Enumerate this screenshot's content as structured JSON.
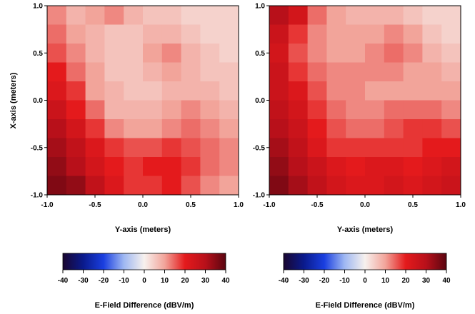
{
  "colorbar": {
    "stops": [
      {
        "value": -40,
        "color": "#1a0630"
      },
      {
        "value": -30,
        "color": "#0a1a8c"
      },
      {
        "value": -20,
        "color": "#1a3fe0"
      },
      {
        "value": -10,
        "color": "#9fb8f2"
      },
      {
        "value": 0,
        "color": "#f7f1ee"
      },
      {
        "value": 10,
        "color": "#f2a49a"
      },
      {
        "value": 20,
        "color": "#e41a1c"
      },
      {
        "value": 30,
        "color": "#b8101a"
      },
      {
        "value": 40,
        "color": "#5a0510"
      }
    ]
  },
  "chart_data": [
    {
      "type": "heatmap",
      "title": "",
      "xlabel": "Y-axis (meters)",
      "ylabel": "X-axis (meters)",
      "xlim": [
        -1.0,
        1.0
      ],
      "ylim": [
        -1.0,
        1.0
      ],
      "xticks": [
        "-1.0",
        "-0.5",
        "0.0",
        "0.5",
        "1.0"
      ],
      "yticks": [
        "1.0",
        "0.5",
        "0.0",
        "-0.5",
        "-1.0"
      ],
      "grid_cols": 10,
      "grid_rows": 10,
      "z_values_dBV_per_m": [
        [
          12,
          8,
          10,
          12,
          8,
          6,
          6,
          4,
          4,
          4
        ],
        [
          14,
          10,
          8,
          6,
          6,
          8,
          8,
          6,
          4,
          4
        ],
        [
          16,
          12,
          8,
          6,
          6,
          10,
          12,
          8,
          6,
          4
        ],
        [
          20,
          14,
          10,
          6,
          6,
          8,
          10,
          8,
          6,
          6
        ],
        [
          22,
          18,
          10,
          8,
          6,
          6,
          8,
          8,
          8,
          6
        ],
        [
          26,
          20,
          14,
          8,
          8,
          8,
          10,
          12,
          10,
          8
        ],
        [
          30,
          24,
          18,
          12,
          10,
          10,
          12,
          14,
          12,
          10
        ],
        [
          32,
          28,
          22,
          18,
          16,
          16,
          18,
          16,
          14,
          12
        ],
        [
          34,
          30,
          24,
          20,
          18,
          20,
          20,
          18,
          14,
          12
        ],
        [
          36,
          34,
          28,
          22,
          18,
          18,
          20,
          16,
          12,
          10
        ]
      ],
      "colorbar_label": "E-Field Difference (dBV/m)",
      "colorbar_ticks": [
        "-40",
        "-30",
        "-20",
        "-10",
        "0",
        "10",
        "20",
        "30",
        "40"
      ]
    },
    {
      "type": "heatmap",
      "title": "",
      "xlabel": "Y-axis (meters)",
      "ylabel": "",
      "xlim": [
        -1.0,
        1.0
      ],
      "ylim": [
        -1.0,
        1.0
      ],
      "xticks": [
        "-1.0",
        "-0.5",
        "0.0",
        "0.5",
        "1.0"
      ],
      "yticks": [
        "1.0",
        "0.5",
        "0.0",
        "-0.5",
        "-1.0"
      ],
      "grid_cols": 10,
      "grid_rows": 10,
      "z_values_dBV_per_m": [
        [
          30,
          24,
          14,
          10,
          8,
          8,
          8,
          6,
          4,
          4
        ],
        [
          26,
          18,
          12,
          10,
          10,
          10,
          12,
          10,
          6,
          4
        ],
        [
          24,
          16,
          12,
          10,
          10,
          12,
          14,
          12,
          8,
          6
        ],
        [
          26,
          18,
          14,
          12,
          12,
          12,
          12,
          10,
          10,
          8
        ],
        [
          26,
          22,
          16,
          12,
          12,
          10,
          10,
          10,
          10,
          10
        ],
        [
          28,
          24,
          18,
          14,
          12,
          12,
          14,
          14,
          14,
          12
        ],
        [
          30,
          26,
          20,
          16,
          14,
          14,
          16,
          18,
          18,
          16
        ],
        [
          32,
          28,
          22,
          18,
          18,
          18,
          18,
          18,
          20,
          20
        ],
        [
          34,
          30,
          26,
          22,
          20,
          22,
          22,
          20,
          22,
          24
        ],
        [
          36,
          32,
          28,
          24,
          22,
          22,
          24,
          22,
          24,
          26
        ]
      ],
      "colorbar_label": "E-Field Difference (dBV/m)",
      "colorbar_ticks": [
        "-40",
        "-30",
        "-20",
        "-10",
        "0",
        "10",
        "20",
        "30",
        "40"
      ]
    }
  ]
}
